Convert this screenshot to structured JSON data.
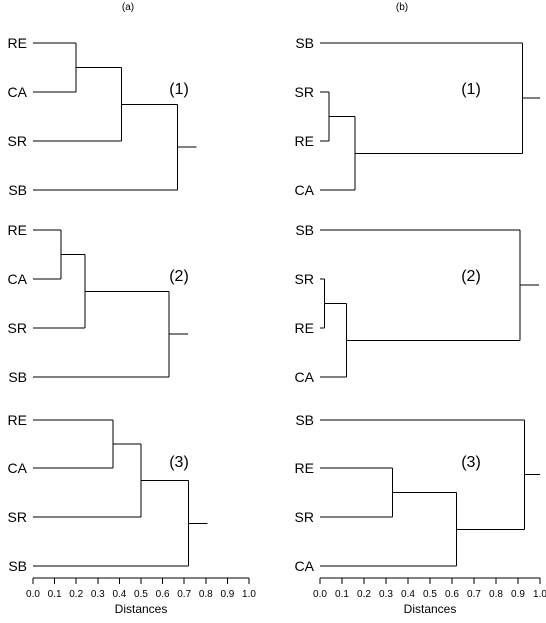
{
  "panels": [
    {
      "label": "(a)",
      "dendrograms": [
        {
          "number": "(1)",
          "leaves": [
            "RE",
            "CA",
            "SR",
            "SB"
          ],
          "merges": [
            {
              "a": "RE",
              "b": "CA",
              "height": 0.2
            },
            {
              "a": "m0",
              "b": "SR",
              "height": 0.41
            },
            {
              "a": "m1",
              "b": "SB",
              "height": 0.67
            }
          ]
        },
        {
          "number": "(2)",
          "leaves": [
            "RE",
            "CA",
            "SR",
            "SB"
          ],
          "merges": [
            {
              "a": "RE",
              "b": "CA",
              "height": 0.13
            },
            {
              "a": "m0",
              "b": "SR",
              "height": 0.24
            },
            {
              "a": "m1",
              "b": "SB",
              "height": 0.63
            }
          ]
        },
        {
          "number": "(3)",
          "leaves": [
            "RE",
            "CA",
            "SR",
            "SB"
          ],
          "merges": [
            {
              "a": "RE",
              "b": "CA",
              "height": 0.37
            },
            {
              "a": "m0",
              "b": "SR",
              "height": 0.5
            },
            {
              "a": "m1",
              "b": "SB",
              "height": 0.72
            }
          ]
        }
      ],
      "axis": {
        "ticks": [
          "0.0",
          "0.1",
          "0.2",
          "0.3",
          "0.4",
          "0.5",
          "0.6",
          "0.7",
          "0.8",
          "0.9",
          "1.0"
        ],
        "title": "Distances"
      }
    },
    {
      "label": "(b)",
      "dendrograms": [
        {
          "number": "(1)",
          "leaves": [
            "SB",
            "SR",
            "RE",
            "CA"
          ],
          "merges": [
            {
              "a": "SR",
              "b": "RE",
              "height": 0.04
            },
            {
              "a": "m0",
              "b": "CA",
              "height": 0.16
            },
            {
              "a": "SB",
              "b": "m1",
              "height": 0.92
            }
          ]
        },
        {
          "number": "(2)",
          "leaves": [
            "SB",
            "SR",
            "RE",
            "CA"
          ],
          "merges": [
            {
              "a": "SR",
              "b": "RE",
              "height": 0.02
            },
            {
              "a": "m0",
              "b": "CA",
              "height": 0.12
            },
            {
              "a": "SB",
              "b": "m1",
              "height": 0.91
            }
          ]
        },
        {
          "number": "(3)",
          "leaves": [
            "SB",
            "RE",
            "SR",
            "CA"
          ],
          "merges": [
            {
              "a": "RE",
              "b": "SR",
              "height": 0.33
            },
            {
              "a": "m0",
              "b": "CA",
              "height": 0.62
            },
            {
              "a": "SB",
              "b": "m1",
              "height": 0.93
            }
          ]
        }
      ],
      "axis": {
        "ticks": [
          "0.0",
          "0.1",
          "0.2",
          "0.3",
          "0.4",
          "0.5",
          "0.6",
          "0.7",
          "0.8",
          "0.9",
          "1.0"
        ],
        "title": "Distances"
      }
    }
  ]
}
